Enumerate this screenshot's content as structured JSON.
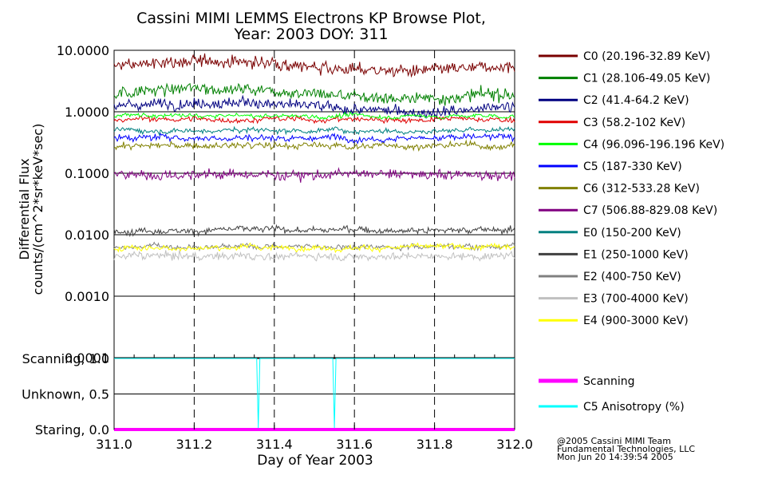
{
  "chart_data": {
    "type": "line",
    "title_line1": "Cassini MIMI LEMMS Electrons KP Browse Plot,",
    "title_line2": "Year: 2003 DOY: 311",
    "top_panel": {
      "ylabel_line1": "Differential Flux",
      "ylabel_line2": "counts/(cm^2*sr*keV*sec)",
      "yscale": "log",
      "ylim": [
        0.0001,
        10.0
      ],
      "yticks": [
        "10.0000",
        "1.0000",
        "0.1000",
        "0.0100",
        "0.0010",
        "0.0001"
      ],
      "grid": true,
      "series": [
        {
          "name": "C0 (20.196-32.89 KeV)",
          "color": "#7a0000",
          "mean": 5.5,
          "noise": 0.1
        },
        {
          "name": "C1 (28.106-49.05 KeV)",
          "color": "#008000",
          "mean": 2.0,
          "noise": 0.1
        },
        {
          "name": "C2 (41.4-64.2 KeV)",
          "color": "#000080",
          "mean": 1.2,
          "noise": 0.09
        },
        {
          "name": "C3 (58.2-102 KeV)",
          "color": "#e00000",
          "mean": 0.75,
          "noise": 0.04
        },
        {
          "name": "C4 (96.096-196.196 KeV)",
          "color": "#00ff00",
          "mean": 0.85,
          "noise": 0.03
        },
        {
          "name": "C5 (187-330 KeV)",
          "color": "#0000ff",
          "mean": 0.38,
          "noise": 0.05
        },
        {
          "name": "C6 (312-533.28 KeV)",
          "color": "#808000",
          "mean": 0.28,
          "noise": 0.05
        },
        {
          "name": "C7 (506.88-829.08 KeV)",
          "color": "#800080",
          "mean": 0.095,
          "noise": 0.08
        },
        {
          "name": "E0 (150-200 KeV)",
          "color": "#008080",
          "mean": 0.5,
          "noise": 0.04
        },
        {
          "name": "E1 (250-1000 KeV)",
          "color": "#404040",
          "mean": 0.012,
          "noise": 0.05
        },
        {
          "name": "E2 (400-750 KeV)",
          "color": "#808080",
          "mean": 0.0065,
          "noise": 0.04
        },
        {
          "name": "E3 (700-4000 KeV)",
          "color": "#c0c0c0",
          "mean": 0.0045,
          "noise": 0.06
        },
        {
          "name": "E4 (900-3000 KeV)",
          "color": "#ffff00",
          "mean": 0.0062,
          "noise": 0.04
        }
      ]
    },
    "bottom_panel": {
      "yticks": [
        "Scanning, 1.0",
        "Unknown, 0.5",
        "Staring, 0.0"
      ],
      "ytick_values": [
        1.0,
        0.5,
        0.0
      ],
      "ylim": [
        0.0,
        1.0
      ],
      "series": [
        {
          "name": "Scanning",
          "color": "#ff00ff",
          "value": 0.0
        },
        {
          "name": "C5 Anisotropy (%)",
          "color": "#00ffff",
          "value": 1.0,
          "dips": [
            311.36,
            311.55
          ]
        }
      ]
    },
    "xlabel": "Day of Year 2003",
    "xlim": [
      311.0,
      312.0
    ],
    "xticks": [
      "311.0",
      "311.2",
      "311.4",
      "311.6",
      "311.8",
      "312.0"
    ],
    "xtick_values": [
      311.0,
      311.2,
      311.4,
      311.6,
      311.8,
      312.0
    ],
    "dashed_verticals": [
      311.2,
      311.4,
      311.6,
      311.8
    ]
  },
  "credits": {
    "line1": "@2005 Cassini MIMI Team",
    "line2": "Fundamental Technologies, LLC",
    "line3": "Mon Jun 20 14:39:54 2005"
  }
}
